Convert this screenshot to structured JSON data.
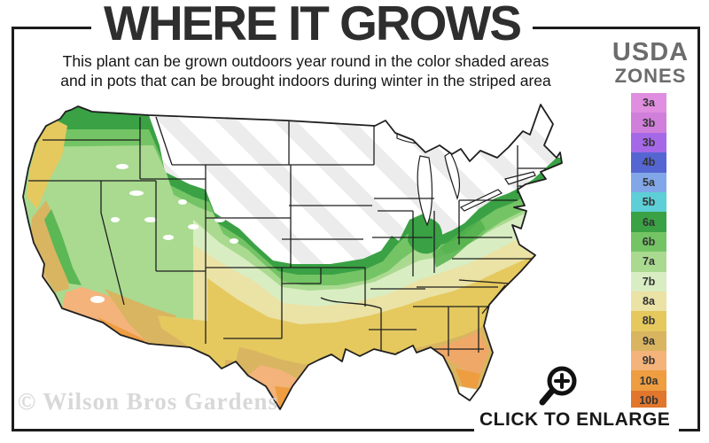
{
  "header": {
    "title": "WHERE IT GROWS",
    "subtitle_line1": "This plant can be grown outdoors year round in the color shaded areas",
    "subtitle_line2": "and in pots that can be brought indoors during winter in the striped area"
  },
  "legend": {
    "heading_line1": "USDA",
    "heading_line2": "ZONES",
    "zones": [
      {
        "label": "3a",
        "color": "#e08fe0"
      },
      {
        "label": "3b",
        "color": "#d07fda"
      },
      {
        "label": "3b",
        "color": "#a569e8"
      },
      {
        "label": "4b",
        "color": "#5566d2"
      },
      {
        "label": "5a",
        "color": "#82a7e8"
      },
      {
        "label": "5b",
        "color": "#5ecfd6"
      },
      {
        "label": "6a",
        "color": "#3aa144"
      },
      {
        "label": "6b",
        "color": "#74c465"
      },
      {
        "label": "7a",
        "color": "#a9da90"
      },
      {
        "label": "7b",
        "color": "#d9edc2"
      },
      {
        "label": "8a",
        "color": "#ebe2a5"
      },
      {
        "label": "8b",
        "color": "#e5c95f"
      },
      {
        "label": "9a",
        "color": "#d9b561"
      },
      {
        "label": "9b",
        "color": "#f4b37a"
      },
      {
        "label": "10a",
        "color": "#ee9d40"
      },
      {
        "label": "10b",
        "color": "#e1762c"
      }
    ]
  },
  "map": {
    "watermark": "© Wilson Bros Gardens"
  },
  "footer": {
    "enlarge_label": "CLICK TO ENLARGE",
    "magnifier_icon": "magnifying-glass-plus-icon"
  },
  "colors": {
    "frame": "#1c1c1c",
    "title_text": "#2e2e2e",
    "usda_heading_text": "#6c6c6c",
    "watermark_text": "#d8d8d8",
    "stripe": "#ececec"
  }
}
